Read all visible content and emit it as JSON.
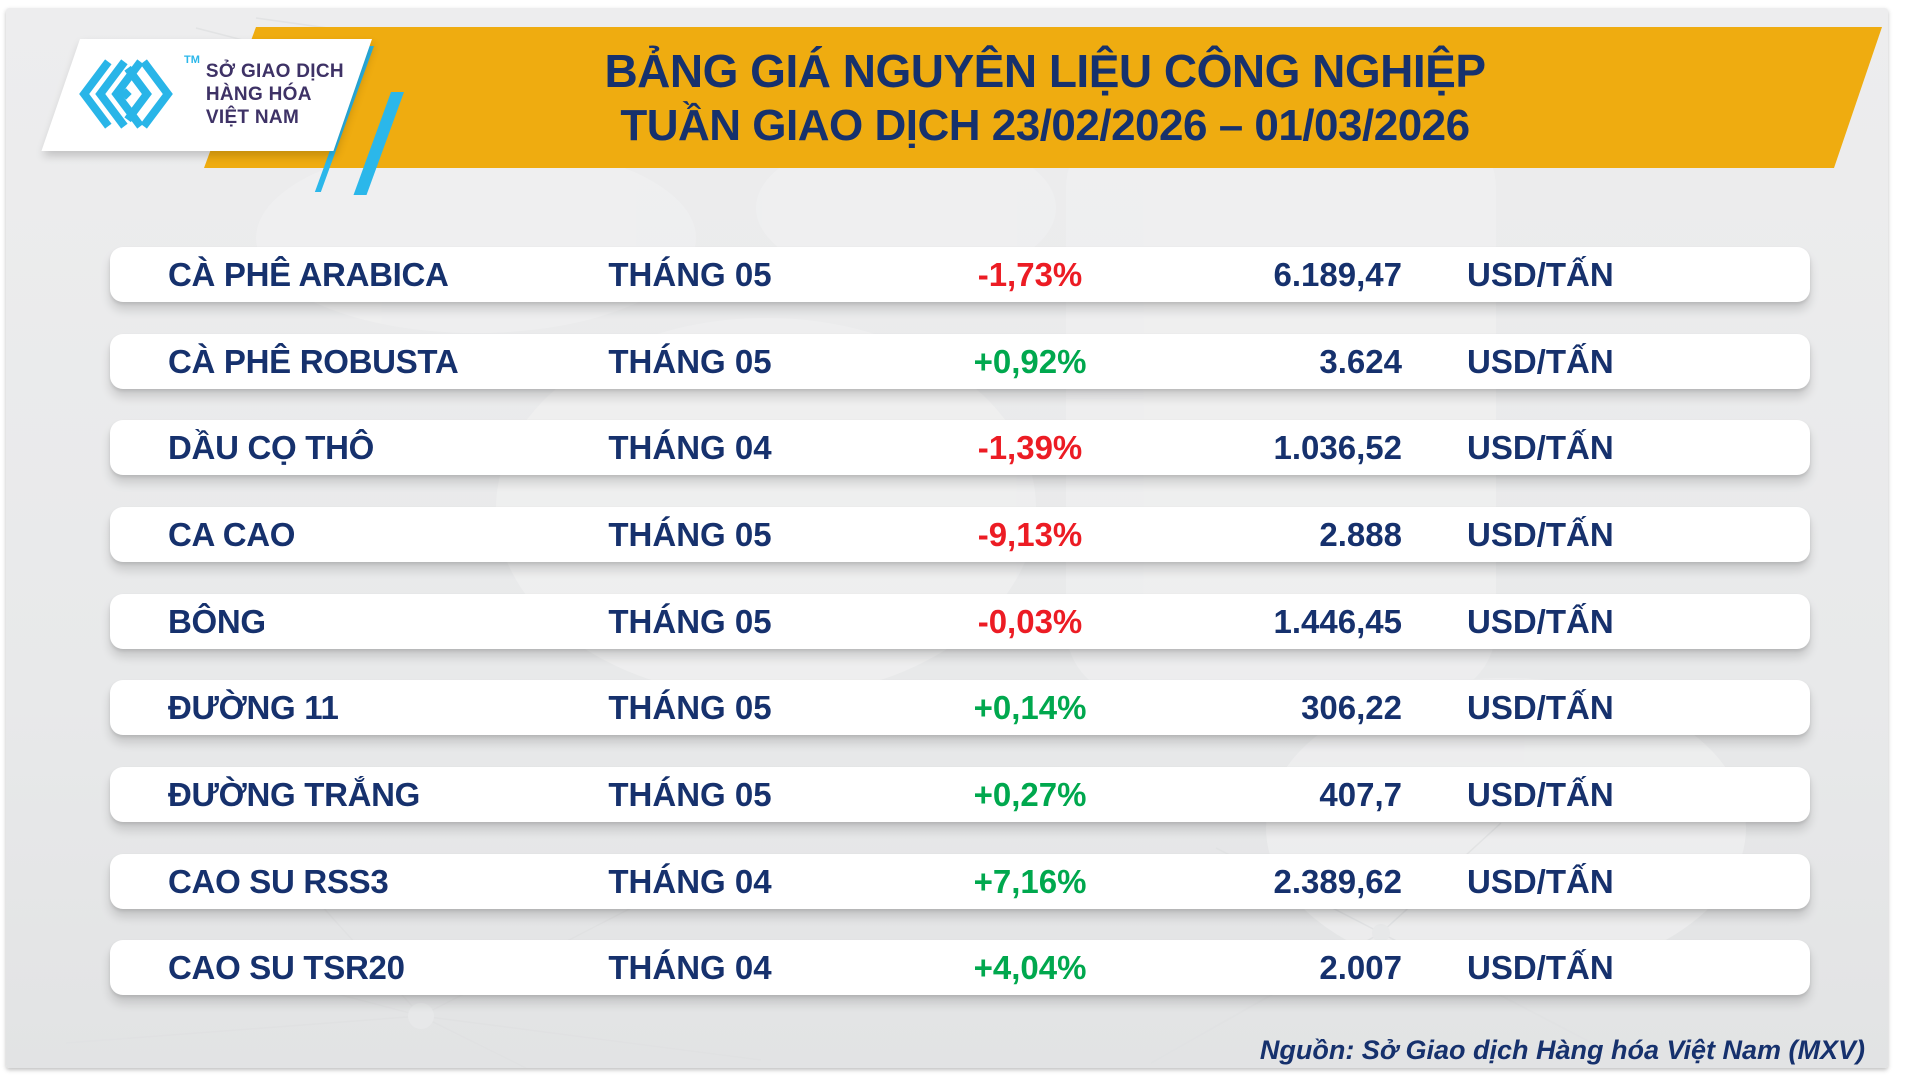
{
  "header": {
    "logo": {
      "tm": "TM",
      "lines": [
        "SỞ GIAO DỊCH",
        "HÀNG HÓA",
        "VIỆT NAM"
      ]
    },
    "title_line1": "BẢNG GIÁ NGUYÊN LIỆU CÔNG NGHIỆP",
    "title_line2": "TUẦN GIAO DỊCH 23/02/2026 – 01/03/2026"
  },
  "colors": {
    "banner_yellow": "#EFAC10",
    "navy_text": "#16316D",
    "up_green": "#00A84E",
    "down_red": "#EC1C24",
    "logo_cyan": "#2BB7EA",
    "background_gray": "#EAEAEB"
  },
  "table": {
    "rows": [
      {
        "name": "CÀ PHÊ ARABICA",
        "month": "THÁNG 05",
        "change": "-1,73%",
        "direction": "down",
        "price": "6.189,47",
        "unit": "USD/TẤN"
      },
      {
        "name": "CÀ PHÊ ROBUSTA",
        "month": "THÁNG 05",
        "change": "+0,92%",
        "direction": "up",
        "price": "3.624",
        "unit": "USD/TẤN"
      },
      {
        "name": "DẦU CỌ THÔ",
        "month": "THÁNG 04",
        "change": "-1,39%",
        "direction": "down",
        "price": "1.036,52",
        "unit": "USD/TẤN"
      },
      {
        "name": "CA CAO",
        "month": "THÁNG 05",
        "change": "-9,13%",
        "direction": "down",
        "price": "2.888",
        "unit": "USD/TẤN"
      },
      {
        "name": "BÔNG",
        "month": "THÁNG 05",
        "change": "-0,03%",
        "direction": "down",
        "price": "1.446,45",
        "unit": "USD/TẤN"
      },
      {
        "name": "ĐƯỜNG 11",
        "month": "THÁNG 05",
        "change": "+0,14%",
        "direction": "up",
        "price": "306,22",
        "unit": "USD/TẤN"
      },
      {
        "name": "ĐƯỜNG TRẮNG",
        "month": "THÁNG 05",
        "change": "+0,27%",
        "direction": "up",
        "price": "407,7",
        "unit": "USD/TẤN"
      },
      {
        "name": "CAO SU RSS3",
        "month": "THÁNG 04",
        "change": "+7,16%",
        "direction": "up",
        "price": "2.389,62",
        "unit": "USD/TẤN"
      },
      {
        "name": "CAO SU TSR20",
        "month": "THÁNG 04",
        "change": "+4,04%",
        "direction": "up",
        "price": "2.007",
        "unit": "USD/TẤN"
      }
    ]
  },
  "footer": {
    "source": "Nguồn: Sở Giao dịch Hàng hóa Việt Nam (MXV)"
  },
  "chart_data": {
    "type": "table",
    "title": "BẢNG GIÁ NGUYÊN LIỆU CÔNG NGHIỆP",
    "subtitle": "TUẦN GIAO DỊCH 23/02/2026 – 01/03/2026",
    "columns": [
      "commodity",
      "contract_month",
      "weekly_change_pct",
      "price",
      "unit"
    ],
    "rows": [
      [
        "CÀ PHÊ ARABICA",
        "THÁNG 05",
        -1.73,
        6189.47,
        "USD/TẤN"
      ],
      [
        "CÀ PHÊ ROBUSTA",
        "THÁNG 05",
        0.92,
        3624,
        "USD/TẤN"
      ],
      [
        "DẦU CỌ THÔ",
        "THÁNG 04",
        -1.39,
        1036.52,
        "USD/TẤN"
      ],
      [
        "CA CAO",
        "THÁNG 05",
        -9.13,
        2888,
        "USD/TẤN"
      ],
      [
        "BÔNG",
        "THÁNG 05",
        -0.03,
        1446.45,
        "USD/TẤN"
      ],
      [
        "ĐƯỜNG 11",
        "THÁNG 05",
        0.14,
        306.22,
        "USD/TẤN"
      ],
      [
        "ĐƯỜNG TRẮNG",
        "THÁNG 05",
        0.27,
        407.7,
        "USD/TẤN"
      ],
      [
        "CAO SU RSS3",
        "THÁNG 04",
        7.16,
        2389.62,
        "USD/TẤN"
      ],
      [
        "CAO SU TSR20",
        "THÁNG 04",
        4.04,
        2007,
        "USD/TẤN"
      ]
    ],
    "source": "Nguồn: Sở Giao dịch Hàng hóa Việt Nam (MXV)"
  }
}
